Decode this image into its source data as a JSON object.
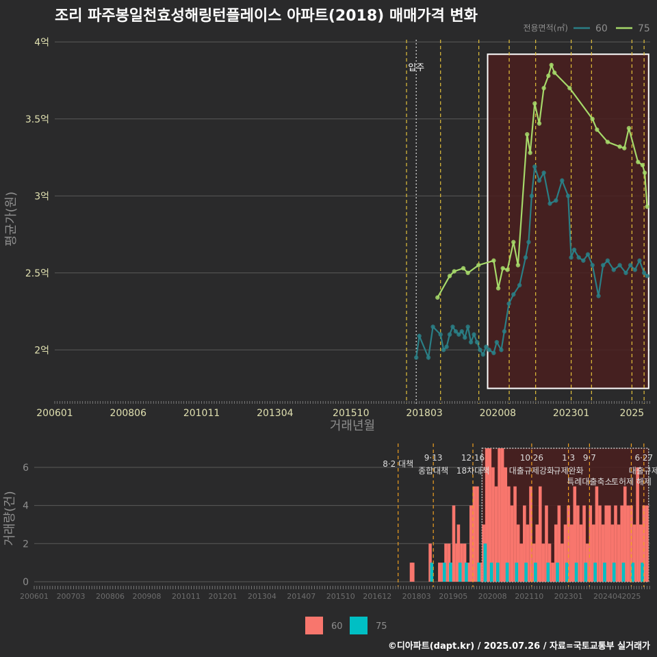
{
  "header": {
    "title": "조리 파주봉일천효성해링턴플레이스 아파트(2018) 매매가격 변화",
    "footer": "©디아파트(dapt.kr) / 2025.07.26 / 자료=국토교통부 실거래가"
  },
  "colors": {
    "background": "#2a2a2b",
    "line60": "#2a7f86",
    "line75": "#a6d96a",
    "bar60": "#f8766d",
    "bar75": "#00bfc4",
    "policy": "#e3c13b",
    "highlight": "#4a1f1f"
  },
  "chart_data": [
    {
      "type": "line",
      "title": "조리 파주봉일천효성해링턴플레이스 아파트(2018) 매매가격 변화",
      "xlabel": "거래년월",
      "ylabel": "평균가(원)",
      "x_ticks": [
        "200601",
        "200806",
        "201011",
        "201304",
        "201510",
        "201803",
        "202008",
        "202301",
        "2025"
      ],
      "y_ticks": [
        {
          "v": 2.0,
          "label": "2억"
        },
        {
          "v": 2.5,
          "label": "2.5억"
        },
        {
          "v": 3.0,
          "label": "3억"
        },
        {
          "v": 3.5,
          "label": "3.5억"
        },
        {
          "v": 4.0,
          "label": "4억"
        }
      ],
      "ylim": [
        1.65,
        4.05
      ],
      "legend_title": "전용면적(㎡)",
      "annotation_move_in": {
        "x": 2017.9,
        "label": "입주"
      },
      "highlight_range": {
        "x0": 2020.25,
        "x1": 2025.55,
        "y0": 1.75,
        "y1": 3.92
      },
      "policy_lines_x": [
        2017.58,
        2018.7,
        2019.96,
        2020.96,
        2021.83,
        2023.0,
        2023.67,
        2025.0,
        2025.4
      ],
      "series": [
        {
          "name": "60",
          "points": [
            [
              2017.9,
              1.95
            ],
            [
              2018.0,
              2.09
            ],
            [
              2018.3,
              1.95
            ],
            [
              2018.45,
              2.15
            ],
            [
              2018.7,
              2.1
            ],
            [
              2018.8,
              2.0
            ],
            [
              2018.9,
              2.02
            ],
            [
              2019.0,
              2.1
            ],
            [
              2019.1,
              2.15
            ],
            [
              2019.2,
              2.12
            ],
            [
              2019.3,
              2.1
            ],
            [
              2019.4,
              2.12
            ],
            [
              2019.5,
              2.08
            ],
            [
              2019.6,
              2.15
            ],
            [
              2019.7,
              2.05
            ],
            [
              2019.8,
              2.1
            ],
            [
              2019.9,
              2.05
            ],
            [
              2020.0,
              2.0
            ],
            [
              2020.1,
              1.97
            ],
            [
              2020.2,
              2.02
            ],
            [
              2020.3,
              2.0
            ],
            [
              2020.45,
              1.98
            ],
            [
              2020.55,
              2.05
            ],
            [
              2020.7,
              2.0
            ],
            [
              2020.8,
              2.12
            ],
            [
              2020.95,
              2.3
            ],
            [
              2021.1,
              2.36
            ],
            [
              2021.3,
              2.42
            ],
            [
              2021.5,
              2.6
            ],
            [
              2021.6,
              2.7
            ],
            [
              2021.7,
              3.0
            ],
            [
              2021.8,
              3.19
            ],
            [
              2021.95,
              3.1
            ],
            [
              2022.1,
              3.15
            ],
            [
              2022.3,
              2.95
            ],
            [
              2022.5,
              2.97
            ],
            [
              2022.7,
              3.1
            ],
            [
              2022.9,
              3.0
            ],
            [
              2023.0,
              2.6
            ],
            [
              2023.1,
              2.65
            ],
            [
              2023.25,
              2.6
            ],
            [
              2023.4,
              2.58
            ],
            [
              2023.55,
              2.62
            ],
            [
              2023.7,
              2.55
            ],
            [
              2023.9,
              2.35
            ],
            [
              2024.05,
              2.55
            ],
            [
              2024.2,
              2.58
            ],
            [
              2024.4,
              2.52
            ],
            [
              2024.6,
              2.55
            ],
            [
              2024.8,
              2.5
            ],
            [
              2024.95,
              2.55
            ],
            [
              2025.1,
              2.52
            ],
            [
              2025.25,
              2.58
            ],
            [
              2025.4,
              2.5
            ],
            [
              2025.5,
              2.48
            ]
          ]
        },
        {
          "name": "75",
          "points": [
            [
              2018.6,
              2.34
            ],
            [
              2019.0,
              2.48
            ],
            [
              2019.15,
              2.51
            ],
            [
              2019.45,
              2.53
            ],
            [
              2019.6,
              2.5
            ],
            [
              2019.95,
              2.55
            ],
            [
              2020.45,
              2.58
            ],
            [
              2020.6,
              2.4
            ],
            [
              2020.75,
              2.53
            ],
            [
              2020.9,
              2.52
            ],
            [
              2021.1,
              2.7
            ],
            [
              2021.25,
              2.55
            ],
            [
              2021.55,
              3.4
            ],
            [
              2021.65,
              3.28
            ],
            [
              2021.8,
              3.6
            ],
            [
              2021.95,
              3.47
            ],
            [
              2022.1,
              3.7
            ],
            [
              2022.25,
              3.78
            ],
            [
              2022.35,
              3.85
            ],
            [
              2022.45,
              3.8
            ],
            [
              2022.95,
              3.7
            ],
            [
              2023.7,
              3.5
            ],
            [
              2023.85,
              3.43
            ],
            [
              2024.2,
              3.35
            ],
            [
              2024.6,
              3.32
            ],
            [
              2024.75,
              3.31
            ],
            [
              2024.9,
              3.44
            ],
            [
              2025.2,
              3.22
            ],
            [
              2025.35,
              3.2
            ],
            [
              2025.42,
              3.15
            ],
            [
              2025.5,
              2.93
            ]
          ]
        }
      ]
    },
    {
      "type": "bar",
      "xlabel": "",
      "ylabel": "거래량(건)",
      "x_ticks": [
        "200601",
        "200703",
        "200806",
        "200908",
        "201011",
        "201201",
        "201304",
        "201407",
        "201510",
        "201612",
        "201803",
        "201905",
        "202008",
        "202110",
        "202301",
        "202404",
        "2025"
      ],
      "y_ticks": [
        0,
        2,
        4,
        6
      ],
      "ylim": [
        0,
        7
      ],
      "highlight_range": {
        "x0": 2020.25,
        "x1": 2025.55
      },
      "policy_annotations": [
        {
          "x": 2017.58,
          "label1": "8·2 대책",
          "label2": ""
        },
        {
          "x": 2018.7,
          "label1": "9·13",
          "label2": "종합대책"
        },
        {
          "x": 2019.96,
          "label1": "12·16",
          "label2": "18차대책"
        },
        {
          "x": 2021.83,
          "label1": "10·26",
          "label2": "대출규제강화"
        },
        {
          "x": 2023.0,
          "label1": "1·3",
          "label2": "규제완화"
        },
        {
          "x": 2023.67,
          "label1": "9·7",
          "label2": "특례대출축소"
        },
        {
          "x": 2025.0,
          "label1": "",
          "label2": "토허제 해제"
        },
        {
          "x": 2025.4,
          "label1": "6·27",
          "label2": "대출규제"
        }
      ],
      "legend": [
        {
          "name": "60",
          "color": "#f8766d"
        },
        {
          "name": "75",
          "color": "#00bfc4"
        }
      ],
      "series": [
        {
          "name": "60",
          "values": [
            [
              2018.0,
              1
            ],
            [
              2018.05,
              1
            ],
            [
              2018.6,
              2
            ],
            [
              2018.9,
              1
            ],
            [
              2019.0,
              1
            ],
            [
              2019.1,
              2
            ],
            [
              2019.2,
              2
            ],
            [
              2019.3,
              1
            ],
            [
              2019.35,
              4
            ],
            [
              2019.45,
              2
            ],
            [
              2019.5,
              3
            ],
            [
              2019.6,
              2
            ],
            [
              2019.7,
              2
            ],
            [
              2019.8,
              1
            ],
            [
              2019.9,
              4
            ],
            [
              2020.0,
              5
            ],
            [
              2020.1,
              5
            ],
            [
              2020.2,
              1
            ],
            [
              2020.3,
              3
            ],
            [
              2020.4,
              7
            ],
            [
              2020.5,
              7
            ],
            [
              2020.6,
              6
            ],
            [
              2020.7,
              5
            ],
            [
              2020.8,
              7
            ],
            [
              2020.9,
              7
            ],
            [
              2021.0,
              6
            ],
            [
              2021.1,
              5
            ],
            [
              2021.2,
              4
            ],
            [
              2021.3,
              5
            ],
            [
              2021.4,
              3
            ],
            [
              2021.5,
              2
            ],
            [
              2021.6,
              4
            ],
            [
              2021.7,
              3
            ],
            [
              2021.8,
              5
            ],
            [
              2021.9,
              2
            ],
            [
              2022.0,
              3
            ],
            [
              2022.1,
              5
            ],
            [
              2022.2,
              2
            ],
            [
              2022.3,
              4
            ],
            [
              2022.4,
              2
            ],
            [
              2022.5,
              1
            ],
            [
              2022.6,
              3
            ],
            [
              2022.7,
              4
            ],
            [
              2022.8,
              2
            ],
            [
              2022.9,
              3
            ],
            [
              2023.0,
              4
            ],
            [
              2023.1,
              3
            ],
            [
              2023.2,
              5
            ],
            [
              2023.3,
              4
            ],
            [
              2023.4,
              3
            ],
            [
              2023.5,
              4
            ],
            [
              2023.6,
              2
            ],
            [
              2023.7,
              4
            ],
            [
              2023.8,
              3
            ],
            [
              2023.9,
              5
            ],
            [
              2024.0,
              4
            ],
            [
              2024.1,
              3
            ],
            [
              2024.2,
              4
            ],
            [
              2024.3,
              4
            ],
            [
              2024.4,
              3
            ],
            [
              2024.5,
              4
            ],
            [
              2024.6,
              3
            ],
            [
              2024.7,
              4
            ],
            [
              2024.8,
              5
            ],
            [
              2024.9,
              4
            ],
            [
              2025.0,
              4
            ],
            [
              2025.1,
              3
            ],
            [
              2025.2,
              6
            ],
            [
              2025.3,
              3
            ],
            [
              2025.4,
              4
            ],
            [
              2025.5,
              4
            ]
          ]
        },
        {
          "name": "75",
          "values": [
            [
              2018.65,
              1
            ],
            [
              2019.05,
              1
            ],
            [
              2019.25,
              1
            ],
            [
              2019.55,
              1
            ],
            [
              2019.75,
              1
            ],
            [
              2020.15,
              1
            ],
            [
              2020.35,
              2
            ],
            [
              2020.55,
              1
            ],
            [
              2020.75,
              1
            ],
            [
              2021.05,
              1
            ],
            [
              2021.35,
              1
            ],
            [
              2021.65,
              1
            ],
            [
              2021.95,
              1
            ],
            [
              2022.35,
              1
            ],
            [
              2022.65,
              1
            ],
            [
              2022.95,
              1
            ],
            [
              2023.25,
              1
            ],
            [
              2023.55,
              1
            ],
            [
              2023.85,
              1
            ],
            [
              2024.15,
              1
            ],
            [
              2024.45,
              1
            ],
            [
              2024.75,
              1
            ],
            [
              2025.05,
              1
            ],
            [
              2025.35,
              1
            ]
          ]
        }
      ]
    }
  ]
}
